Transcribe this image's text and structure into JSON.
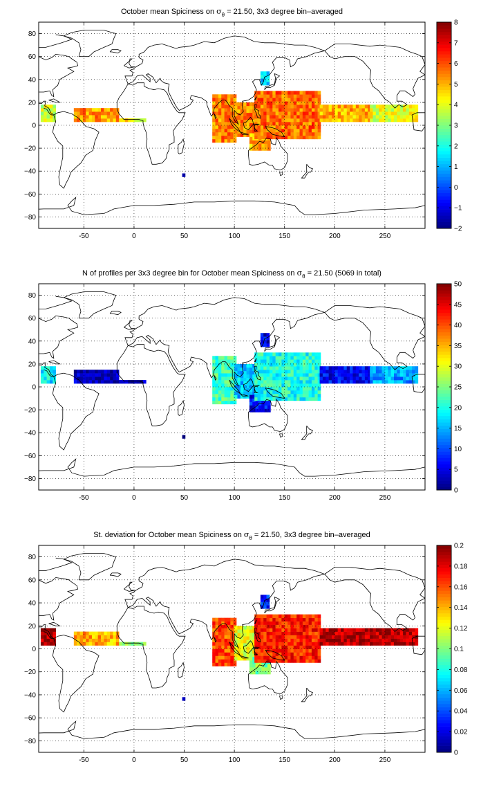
{
  "chart_data": [
    {
      "type": "heatmap",
      "id": "mean",
      "title": {
        "pre": "October mean Spiciness on ",
        "sym": "σ",
        "sub": "θ",
        "post": " = 21.50, 3x3 degree bin–averaged"
      },
      "xlim": [
        -95,
        290
      ],
      "ylim": [
        -90,
        90
      ],
      "xticks": [
        -50,
        0,
        50,
        100,
        150,
        200,
        250
      ],
      "yticks": [
        -80,
        -60,
        -40,
        -20,
        0,
        20,
        40,
        60,
        80
      ],
      "grid": true,
      "grid_style": "dotted",
      "colormap": "jet",
      "colorbar": {
        "min": -2,
        "max": 8,
        "ticks": [
          -2,
          -1,
          0,
          1,
          2,
          3,
          4,
          5,
          6,
          7,
          8
        ]
      },
      "regions": [
        {
          "lon": [
            -93,
            -78
          ],
          "lat": [
            3,
            18
          ],
          "value": 3.8
        },
        {
          "lon": [
            -60,
            -15
          ],
          "lat": [
            3,
            14
          ],
          "value": 5.3
        },
        {
          "lon": [
            -15,
            10
          ],
          "lat": [
            3,
            6
          ],
          "value": 4.3
        },
        {
          "lon": [
            78,
            102
          ],
          "lat": [
            -15,
            25
          ],
          "value": 5.5
        },
        {
          "lon": [
            100,
            120
          ],
          "lat": [
            -10,
            20
          ],
          "value": 5.5
        },
        {
          "lon": [
            115,
            135
          ],
          "lat": [
            -22,
            -8
          ],
          "value": 5.0
        },
        {
          "lon": [
            120,
            185
          ],
          "lat": [
            -12,
            30
          ],
          "value": 5.7
        },
        {
          "lon": [
            185,
            235
          ],
          "lat": [
            3,
            18
          ],
          "value": 5.0
        },
        {
          "lon": [
            235,
            282
          ],
          "lat": [
            3,
            18
          ],
          "value": 4.0
        },
        {
          "lon": [
            126,
            133
          ],
          "lat": [
            35,
            45
          ],
          "value": 1.5
        },
        {
          "lon": [
            48,
            51
          ],
          "lat": [
            -45,
            -42
          ],
          "value": -1.5
        }
      ]
    },
    {
      "type": "heatmap",
      "id": "count",
      "title": {
        "pre": "N of profiles per 3x3 degree bin for October mean Spiciness on ",
        "sym": "σ",
        "sub": "θ",
        "post": " = 21.50 (5069 in total)"
      },
      "xlim": [
        -95,
        290
      ],
      "ylim": [
        -90,
        90
      ],
      "xticks": [
        -50,
        0,
        50,
        100,
        150,
        200,
        250
      ],
      "yticks": [
        -80,
        -60,
        -40,
        -20,
        0,
        20,
        40,
        60,
        80
      ],
      "grid": true,
      "grid_style": "dotted",
      "colormap": "jet",
      "colorbar": {
        "min": 0,
        "max": 50,
        "ticks": [
          0,
          5,
          10,
          15,
          20,
          25,
          30,
          35,
          40,
          45,
          50
        ]
      },
      "regions": [
        {
          "lon": [
            -93,
            -78
          ],
          "lat": [
            3,
            18
          ],
          "value": 18
        },
        {
          "lon": [
            -60,
            -15
          ],
          "lat": [
            3,
            14
          ],
          "value": 3
        },
        {
          "lon": [
            -15,
            10
          ],
          "lat": [
            3,
            6
          ],
          "value": 3
        },
        {
          "lon": [
            78,
            102
          ],
          "lat": [
            -15,
            25
          ],
          "value": 22
        },
        {
          "lon": [
            100,
            120
          ],
          "lat": [
            -10,
            20
          ],
          "value": 16
        },
        {
          "lon": [
            115,
            135
          ],
          "lat": [
            -22,
            -8
          ],
          "value": 6
        },
        {
          "lon": [
            120,
            185
          ],
          "lat": [
            -12,
            30
          ],
          "value": 20
        },
        {
          "lon": [
            185,
            235
          ],
          "lat": [
            3,
            18
          ],
          "value": 6
        },
        {
          "lon": [
            235,
            282
          ],
          "lat": [
            3,
            18
          ],
          "value": 14
        },
        {
          "lon": [
            126,
            133
          ],
          "lat": [
            35,
            45
          ],
          "value": 5
        },
        {
          "lon": [
            48,
            51
          ],
          "lat": [
            -45,
            -42
          ],
          "value": 2
        }
      ]
    },
    {
      "type": "heatmap",
      "id": "std",
      "title": {
        "pre": "St. deviation for October mean Spiciness on ",
        "sym": "σ",
        "sub": "θ",
        "post": " = 21.50, 3x3 degree bin–averaged"
      },
      "xlim": [
        -95,
        290
      ],
      "ylim": [
        -90,
        90
      ],
      "xticks": [
        -50,
        0,
        50,
        100,
        150,
        200,
        250
      ],
      "yticks": [
        -80,
        -60,
        -40,
        -20,
        0,
        20,
        40,
        60,
        80
      ],
      "grid": true,
      "grid_style": "dotted",
      "colormap": "jet",
      "colorbar": {
        "min": 0,
        "max": 0.2,
        "ticks": [
          0,
          0.02,
          0.04,
          0.06,
          0.08,
          0.1,
          0.12,
          0.14,
          0.16,
          0.18,
          0.2
        ]
      },
      "regions": [
        {
          "lon": [
            -93,
            -78
          ],
          "lat": [
            3,
            18
          ],
          "value": 0.19
        },
        {
          "lon": [
            -60,
            -15
          ],
          "lat": [
            3,
            14
          ],
          "value": 0.14
        },
        {
          "lon": [
            -15,
            10
          ],
          "lat": [
            3,
            6
          ],
          "value": 0.1
        },
        {
          "lon": [
            78,
            102
          ],
          "lat": [
            -15,
            25
          ],
          "value": 0.16
        },
        {
          "lon": [
            100,
            120
          ],
          "lat": [
            -10,
            20
          ],
          "value": 0.12
        },
        {
          "lon": [
            115,
            135
          ],
          "lat": [
            -22,
            -8
          ],
          "value": 0.1
        },
        {
          "lon": [
            120,
            185
          ],
          "lat": [
            -12,
            30
          ],
          "value": 0.17
        },
        {
          "lon": [
            185,
            235
          ],
          "lat": [
            3,
            18
          ],
          "value": 0.19
        },
        {
          "lon": [
            235,
            282
          ],
          "lat": [
            3,
            18
          ],
          "value": 0.19
        },
        {
          "lon": [
            126,
            133
          ],
          "lat": [
            35,
            45
          ],
          "value": 0.03
        },
        {
          "lon": [
            48,
            51
          ],
          "lat": [
            -45,
            -42
          ],
          "value": 0.01
        }
      ]
    }
  ]
}
